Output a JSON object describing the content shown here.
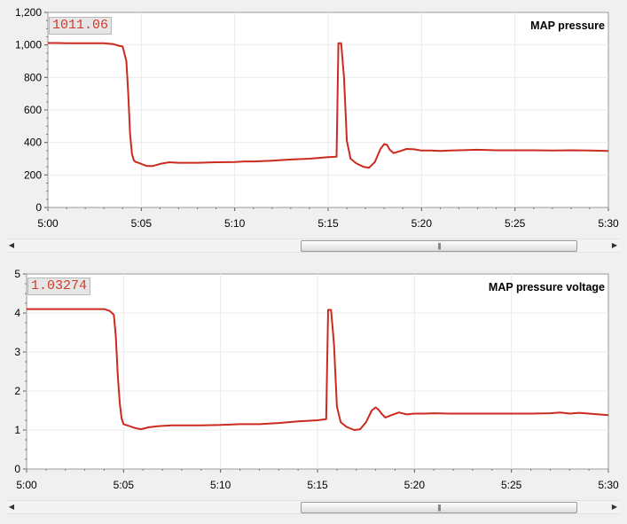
{
  "chart_data": [
    {
      "type": "line",
      "title": "MAP pressure",
      "readout": "1011.06",
      "ylim": [
        0,
        1200
      ],
      "yticks": [
        "0",
        "200",
        "400",
        "600",
        "800",
        "1,000",
        "1,200"
      ],
      "yticks_values": [
        0,
        200,
        400,
        600,
        800,
        1000,
        1200
      ],
      "xlim": [
        0,
        30
      ],
      "xticks": [
        "5:00",
        "5:05",
        "5:10",
        "5:15",
        "5:20",
        "5:25",
        "5:30"
      ],
      "xticks_values": [
        0,
        5,
        10,
        15,
        20,
        25,
        30
      ],
      "grid": true,
      "color": "#cc2a1e",
      "x": [
        0,
        0.5,
        1,
        2,
        3,
        3.5,
        3.8,
        4.0,
        4.2,
        4.3,
        4.4,
        4.5,
        4.6,
        4.7,
        4.85,
        5.0,
        5.3,
        5.6,
        6.0,
        6.5,
        7.0,
        7.5,
        8.0,
        9.0,
        10.0,
        10.5,
        11.0,
        12.0,
        13.0,
        14.0,
        15.0,
        15.45,
        15.55,
        15.7,
        15.85,
        16.0,
        16.2,
        16.5,
        16.9,
        17.2,
        17.5,
        17.8,
        18.0,
        18.15,
        18.3,
        18.5,
        18.8,
        19.2,
        19.6,
        20.0,
        20.5,
        21.0,
        21.5,
        22.0,
        23.0,
        24.0,
        25.0,
        26.0,
        27.0,
        28.0,
        29.0,
        30.0
      ],
      "y": [
        1012,
        1012,
        1011,
        1011,
        1011,
        1005,
        995,
        990,
        900,
        700,
        450,
        330,
        290,
        280,
        275,
        268,
        255,
        255,
        268,
        278,
        275,
        275,
        275,
        278,
        280,
        283,
        283,
        288,
        295,
        300,
        310,
        312,
        1010,
        1010,
        800,
        410,
        300,
        272,
        250,
        245,
        280,
        360,
        390,
        385,
        355,
        335,
        345,
        360,
        358,
        350,
        350,
        348,
        350,
        352,
        355,
        352,
        352,
        352,
        350,
        352,
        350,
        348
      ]
    },
    {
      "type": "line",
      "title": "MAP pressure voltage",
      "readout": "1.03274",
      "ylim": [
        0,
        5
      ],
      "yticks": [
        "0",
        "1",
        "2",
        "3",
        "4",
        "5"
      ],
      "yticks_values": [
        0,
        1,
        2,
        3,
        4,
        5
      ],
      "xlim": [
        0,
        30
      ],
      "xticks": [
        "5:00",
        "5:05",
        "5:10",
        "5:15",
        "5:20",
        "5:25",
        "5:30"
      ],
      "xticks_values": [
        0,
        5,
        10,
        15,
        20,
        25,
        30
      ],
      "grid": true,
      "color": "#cc2a1e",
      "x": [
        0,
        1,
        2,
        3,
        3.5,
        4.0,
        4.3,
        4.5,
        4.6,
        4.7,
        4.8,
        4.9,
        5.0,
        5.3,
        5.6,
        5.9,
        6.3,
        6.8,
        7.5,
        9.0,
        10.0,
        11.0,
        12.0,
        13.0,
        14.0,
        15.0,
        15.45,
        15.55,
        15.7,
        15.85,
        16.0,
        16.2,
        16.5,
        16.9,
        17.2,
        17.5,
        17.8,
        18.0,
        18.15,
        18.3,
        18.5,
        18.8,
        19.2,
        19.6,
        20.0,
        20.5,
        21.0,
        22.0,
        23.0,
        24.0,
        25.0,
        26.0,
        27.0,
        27.5,
        28.0,
        28.5,
        29.0,
        30.0
      ],
      "y": [
        4.1,
        4.1,
        4.1,
        4.1,
        4.1,
        4.1,
        4.05,
        3.95,
        3.4,
        2.4,
        1.7,
        1.3,
        1.15,
        1.1,
        1.05,
        1.02,
        1.07,
        1.1,
        1.12,
        1.12,
        1.13,
        1.15,
        1.15,
        1.18,
        1.22,
        1.25,
        1.28,
        4.08,
        4.08,
        3.2,
        1.6,
        1.2,
        1.08,
        1.0,
        1.02,
        1.2,
        1.5,
        1.58,
        1.52,
        1.42,
        1.32,
        1.38,
        1.45,
        1.4,
        1.42,
        1.42,
        1.43,
        1.42,
        1.42,
        1.42,
        1.42,
        1.42,
        1.43,
        1.45,
        1.42,
        1.44,
        1.42,
        1.38
      ]
    }
  ],
  "scrollbars": {
    "grip_glyph": "|||",
    "left_arrow": "◀",
    "right_arrow": "▶"
  }
}
